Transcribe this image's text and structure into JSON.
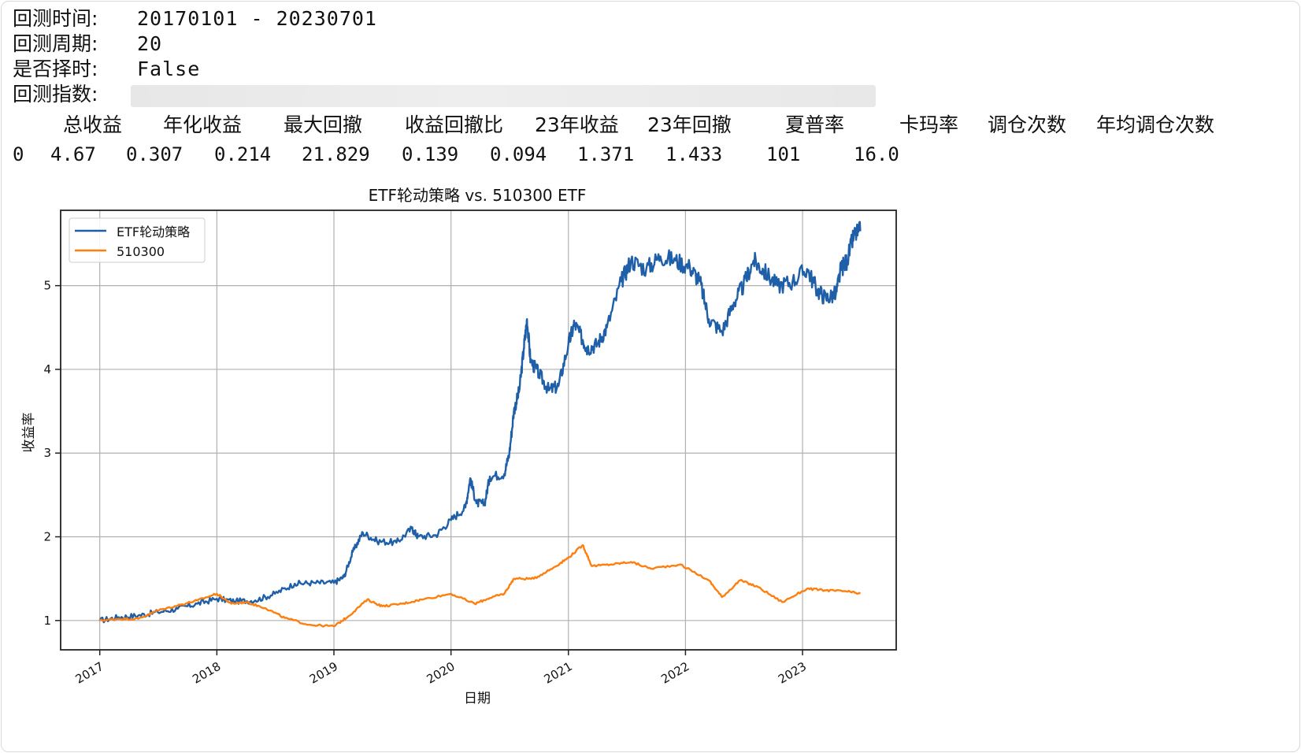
{
  "info": {
    "rows": [
      {
        "label": "回测时间:",
        "value": "20170101 - 20230701"
      },
      {
        "label": "回测周期:",
        "value": "20"
      },
      {
        "label": "是否择时:",
        "value": "False"
      },
      {
        "label": "回测指数:",
        "value": ""
      }
    ]
  },
  "metrics": {
    "headers": [
      "总收益",
      "年化收益",
      "最大回撤",
      "收益回撤比",
      "23年收益",
      "23年回撤",
      "夏普率",
      "卡玛率",
      "调仓次数",
      "年均调仓次数"
    ],
    "index": "0",
    "values": [
      "4.67",
      "0.307",
      "0.214",
      "21.829",
      "0.139",
      "0.094",
      "1.371",
      "1.433",
      "101",
      "16.0"
    ]
  },
  "chart_data": {
    "type": "line",
    "title": "ETF轮动策略 vs. 510300 ETF",
    "xlabel": "日期",
    "ylabel": "收益率",
    "xlim": [
      "2016-09-01",
      "2023-10-20"
    ],
    "ylim": [
      0.65,
      5.9
    ],
    "x_ticks": [
      "2017",
      "2018",
      "2019",
      "2020",
      "2021",
      "2022",
      "2023"
    ],
    "y_ticks": [
      1,
      2,
      3,
      4,
      5
    ],
    "grid": true,
    "legend_position": "top-left",
    "series": [
      {
        "name": "ETF轮动策略",
        "color": "#1f5fa8",
        "points": [
          [
            "2017-01-01",
            1.0
          ],
          [
            "2017-03-01",
            1.04
          ],
          [
            "2017-05-01",
            1.06
          ],
          [
            "2017-07-01",
            1.1
          ],
          [
            "2017-09-01",
            1.14
          ],
          [
            "2017-11-01",
            1.2
          ],
          [
            "2018-01-01",
            1.26
          ],
          [
            "2018-03-01",
            1.23
          ],
          [
            "2018-05-01",
            1.24
          ],
          [
            "2018-07-01",
            1.32
          ],
          [
            "2018-09-01",
            1.44
          ],
          [
            "2018-11-01",
            1.45
          ],
          [
            "2019-01-01",
            1.45
          ],
          [
            "2019-02-01",
            1.52
          ],
          [
            "2019-03-01",
            1.82
          ],
          [
            "2019-04-01",
            2.05
          ],
          [
            "2019-05-15",
            1.95
          ],
          [
            "2019-07-15",
            1.93
          ],
          [
            "2019-09-01",
            2.1
          ],
          [
            "2019-09-20",
            2.0
          ],
          [
            "2019-11-15",
            2.02
          ],
          [
            "2020-01-01",
            2.2
          ],
          [
            "2020-02-15",
            2.35
          ],
          [
            "2020-03-01",
            2.7
          ],
          [
            "2020-03-20",
            2.4
          ],
          [
            "2020-04-15",
            2.4
          ],
          [
            "2020-05-01",
            2.72
          ],
          [
            "2020-06-15",
            2.75
          ],
          [
            "2020-07-01",
            3.0
          ],
          [
            "2020-07-15",
            3.5
          ],
          [
            "2020-08-01",
            3.75
          ],
          [
            "2020-08-15",
            4.25
          ],
          [
            "2020-08-25",
            4.6
          ],
          [
            "2020-09-05",
            4.1
          ],
          [
            "2020-10-01",
            3.95
          ],
          [
            "2020-11-01",
            3.75
          ],
          [
            "2020-12-01",
            3.8
          ],
          [
            "2021-01-01",
            4.3
          ],
          [
            "2021-01-20",
            4.55
          ],
          [
            "2021-02-15",
            4.35
          ],
          [
            "2021-03-01",
            4.25
          ],
          [
            "2021-04-01",
            4.3
          ],
          [
            "2021-05-01",
            4.5
          ],
          [
            "2021-06-15",
            5.05
          ],
          [
            "2021-07-15",
            5.3
          ],
          [
            "2021-09-01",
            5.2
          ],
          [
            "2021-10-15",
            5.35
          ],
          [
            "2021-12-01",
            5.3
          ],
          [
            "2022-01-15",
            5.22
          ],
          [
            "2022-02-15",
            5.05
          ],
          [
            "2022-03-15",
            4.6
          ],
          [
            "2022-04-25",
            4.45
          ],
          [
            "2022-06-01",
            4.8
          ],
          [
            "2022-07-01",
            5.0
          ],
          [
            "2022-08-01",
            5.3
          ],
          [
            "2022-09-01",
            5.18
          ],
          [
            "2022-10-15",
            5.0
          ],
          [
            "2022-12-01",
            5.05
          ],
          [
            "2023-01-15",
            5.2
          ],
          [
            "2023-02-15",
            4.95
          ],
          [
            "2023-03-15",
            4.85
          ],
          [
            "2023-04-15",
            4.9
          ],
          [
            "2023-05-01",
            5.2
          ],
          [
            "2023-05-20",
            5.3
          ],
          [
            "2023-06-10",
            5.6
          ],
          [
            "2023-06-30",
            5.65
          ]
        ]
      },
      {
        "name": "510300",
        "color": "#ff7f0e",
        "points": [
          [
            "2017-01-01",
            1.0
          ],
          [
            "2017-03-01",
            1.02
          ],
          [
            "2017-05-01",
            1.02
          ],
          [
            "2017-07-01",
            1.12
          ],
          [
            "2017-09-01",
            1.18
          ],
          [
            "2017-11-01",
            1.24
          ],
          [
            "2018-01-01",
            1.32
          ],
          [
            "2018-02-15",
            1.2
          ],
          [
            "2018-04-01",
            1.22
          ],
          [
            "2018-06-01",
            1.15
          ],
          [
            "2018-08-01",
            1.03
          ],
          [
            "2018-10-15",
            0.95
          ],
          [
            "2019-01-01",
            0.93
          ],
          [
            "2019-02-15",
            1.05
          ],
          [
            "2019-04-15",
            1.25
          ],
          [
            "2019-06-01",
            1.17
          ],
          [
            "2019-08-01",
            1.2
          ],
          [
            "2019-10-01",
            1.25
          ],
          [
            "2020-01-01",
            1.32
          ],
          [
            "2020-03-15",
            1.2
          ],
          [
            "2020-05-01",
            1.27
          ],
          [
            "2020-06-15",
            1.32
          ],
          [
            "2020-07-15",
            1.5
          ],
          [
            "2020-09-15",
            1.5
          ],
          [
            "2020-11-15",
            1.63
          ],
          [
            "2021-01-01",
            1.75
          ],
          [
            "2021-02-15",
            1.9
          ],
          [
            "2021-03-15",
            1.65
          ],
          [
            "2021-05-15",
            1.67
          ],
          [
            "2021-07-15",
            1.7
          ],
          [
            "2021-09-15",
            1.62
          ],
          [
            "2021-12-15",
            1.67
          ],
          [
            "2022-03-15",
            1.48
          ],
          [
            "2022-04-25",
            1.28
          ],
          [
            "2022-06-20",
            1.48
          ],
          [
            "2022-08-15",
            1.4
          ],
          [
            "2022-10-30",
            1.22
          ],
          [
            "2023-01-15",
            1.38
          ],
          [
            "2023-03-15",
            1.36
          ],
          [
            "2023-05-15",
            1.35
          ],
          [
            "2023-06-30",
            1.32
          ]
        ]
      }
    ]
  }
}
